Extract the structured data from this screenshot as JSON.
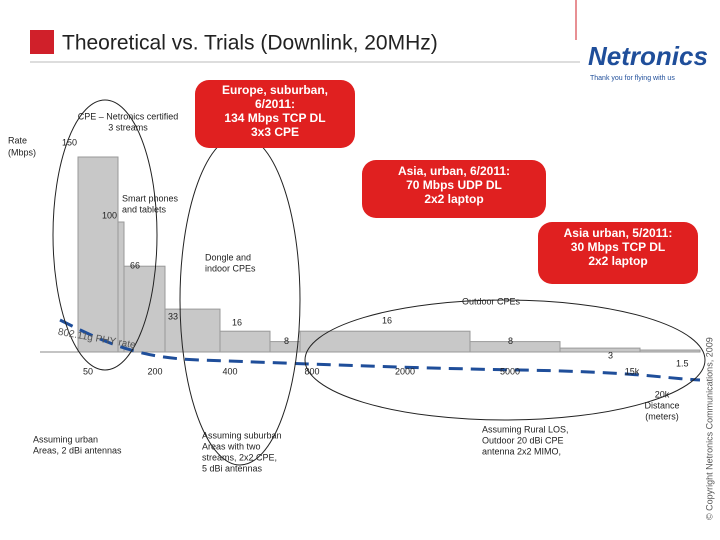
{
  "header": {
    "title": "Theoretical vs. Trials (Downlink, 20MHz)",
    "logo": "Netronics",
    "tagline": "Thank you for flying with us"
  },
  "chart_data": {
    "type": "bar",
    "y_label": [
      "Rate",
      "(Mbps)"
    ],
    "values": [
      150,
      100,
      66,
      33,
      16,
      8,
      16,
      8,
      3,
      1.5
    ],
    "color": "#c8c8c8",
    "ylim": [
      0,
      150
    ],
    "x_labels": [
      "50",
      "200",
      "400",
      "800",
      "2000",
      "5000",
      "15k"
    ],
    "x_title": [
      "20k",
      "Distance",
      "(meters)"
    ],
    "curve_label": "802.11g PHY rate"
  },
  "annotations": {
    "cpe": [
      "CPE – Netronics certified",
      "3 streams"
    ],
    "phones": [
      "Smart phones",
      "and tablets"
    ],
    "dongle": [
      "Dongle and",
      "indoor CPEs"
    ],
    "outdoor": "Outdoor CPEs",
    "urban": [
      "Assuming urban",
      "Areas, 2 dBi antennas"
    ],
    "suburban": [
      "Assuming suburban",
      "Areas with two",
      "streams, 2x2 CPE,",
      "5 dBi antennas"
    ],
    "rural": [
      "Assuming Rural LOS,",
      "Outdoor 20 dBi CPE",
      "antenna 2x2 MIMO,"
    ]
  },
  "callouts": [
    [
      "Europe, suburban,",
      "6/2011:",
      "134 Mbps TCP DL",
      "3x3 CPE"
    ],
    [
      "Asia, urban, 6/2011:",
      "70 Mbps UDP DL",
      "2x2 laptop"
    ],
    [
      "Asia urban, 5/2011:",
      "30 Mbps TCP DL",
      "2x2 laptop"
    ]
  ],
  "copyright": "© Copyright Netronics Communications, 2009"
}
